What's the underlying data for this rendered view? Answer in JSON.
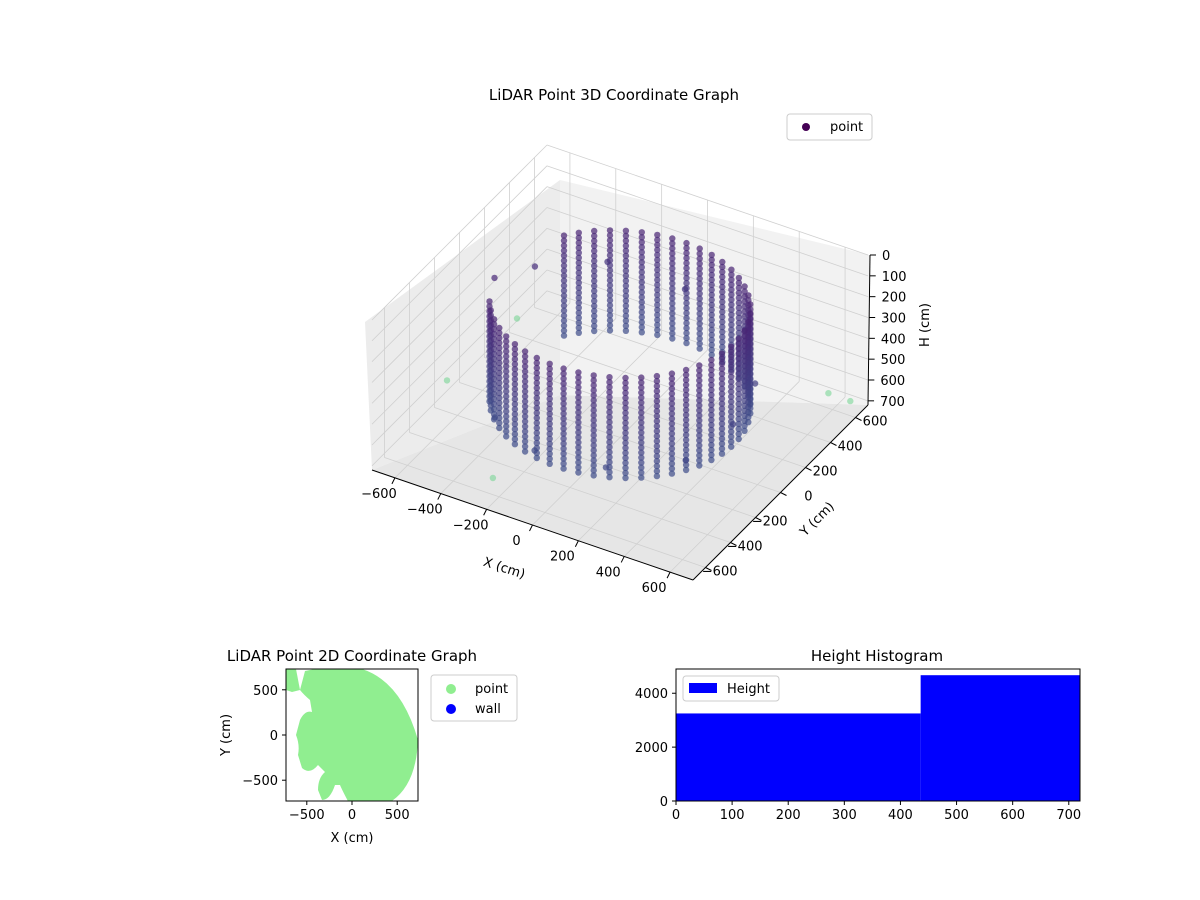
{
  "chart_data": [
    {
      "type": "scatter",
      "subtype": "3d",
      "title": "LiDAR Point 3D Coordinate Graph",
      "xlabel": "X (cm)",
      "ylabel": "Y (cm)",
      "zlabel": "H (cm)",
      "xticks": [
        "−600",
        "−400",
        "−200",
        "0",
        "200",
        "400",
        "600"
      ],
      "yticks": [
        "−600",
        "−400",
        "−200",
        "0",
        "200",
        "400",
        "600"
      ],
      "zticks": [
        "0",
        "100",
        "200",
        "300",
        "400",
        "500",
        "600",
        "700"
      ],
      "xlim": [
        -700,
        700
      ],
      "ylim": [
        -700,
        700
      ],
      "zlim": [
        0,
        720
      ],
      "z_axis_inverted": true,
      "grid": true,
      "legend": {
        "entries": [
          "point"
        ],
        "position": "top-right"
      },
      "colormap": "viridis",
      "colors": {
        "low": "#440154",
        "mid": "#3b528b",
        "high": "#90e39a"
      },
      "series": [
        {
          "name": "point",
          "description_of_shape": "cylindrical wall of points around the origin plus scattered outliers",
          "cylinder_radius": 500,
          "cylinder_height_range": [
            80,
            560
          ],
          "sample_points": [
            [
              -520,
              -50,
              120
            ],
            [
              -480,
              200,
              200
            ],
            [
              -300,
              450,
              260
            ],
            [
              0,
              520,
              320
            ],
            [
              300,
              450,
              360
            ],
            [
              480,
              200,
              400
            ],
            [
              520,
              -50,
              430
            ],
            [
              450,
              -300,
              480
            ],
            [
              200,
              -480,
              500
            ],
            [
              -100,
              -500,
              520
            ],
            [
              -350,
              -360,
              540
            ],
            [
              -640,
              350,
              600
            ],
            [
              -700,
              -100,
              650
            ],
            [
              560,
              640,
              680
            ],
            [
              650,
              650,
              690
            ],
            [
              -200,
              -650,
              600
            ]
          ]
        }
      ]
    },
    {
      "type": "scatter",
      "title": "LiDAR Point 2D Coordinate Graph",
      "xlabel": "X (cm)",
      "ylabel": "Y (cm)",
      "xticks": [
        "−500",
        "0",
        "500"
      ],
      "yticks": [
        "500",
        "0",
        "−500"
      ],
      "xlim": [
        -730,
        730
      ],
      "ylim": [
        -730,
        730
      ],
      "legend": {
        "entries": [
          "point",
          "wall"
        ],
        "position": "right-outside"
      },
      "series": [
        {
          "name": "point",
          "color": "#90ee90",
          "shape": "filled disc of radius ~720 cm with a notch on the left"
        },
        {
          "name": "wall",
          "color": "#0000ff",
          "points": []
        }
      ]
    },
    {
      "type": "bar",
      "subtype": "histogram",
      "title": "Height Histogram",
      "xticks": [
        "0",
        "100",
        "200",
        "300",
        "400",
        "500",
        "600",
        "700"
      ],
      "yticks": [
        "0",
        "2000",
        "4000"
      ],
      "xlim": [
        0,
        720
      ],
      "ylim": [
        0,
        4900
      ],
      "legend": {
        "entries": [
          "Height"
        ],
        "position": "top-left"
      },
      "series": [
        {
          "name": "Height",
          "color": "#0000ff",
          "bins": [
            [
              0,
              436,
              3250
            ],
            [
              436,
              720,
              4670
            ]
          ]
        }
      ]
    }
  ]
}
